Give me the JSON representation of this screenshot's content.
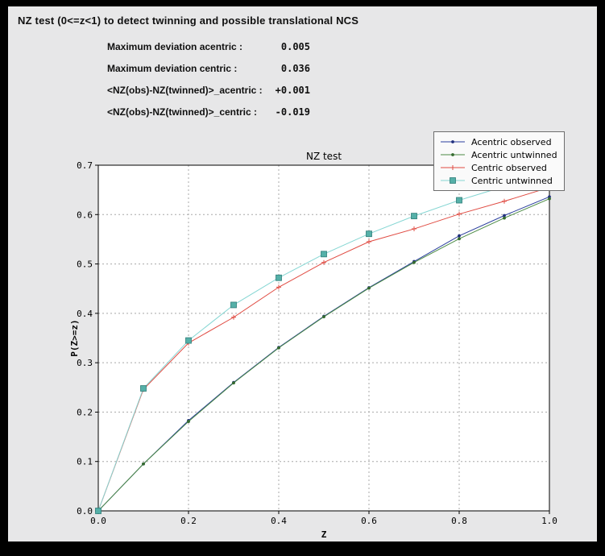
{
  "window": {
    "border_color": "#000000",
    "panel_bg": "#e7e7e8"
  },
  "header": {
    "title": "NZ test (0<=z<1) to detect twinning and possible translational NCS"
  },
  "stats": [
    {
      "label": "Maximum deviation acentric :",
      "value": "0.005"
    },
    {
      "label": "Maximum deviation centric :",
      "value": "0.036"
    },
    {
      "label": "<NZ(obs)-NZ(twinned)>_acentric :",
      "value": "+0.001"
    },
    {
      "label": "<NZ(obs)-NZ(twinned)>_centric :",
      "value": "-0.019"
    }
  ],
  "chart_data": {
    "type": "line",
    "title": "NZ test",
    "xlabel": "Z",
    "ylabel": "P(Z>=z)",
    "xlim": [
      0.0,
      1.0
    ],
    "ylim": [
      0.0,
      0.7
    ],
    "xtick_values": [
      0.0,
      0.2,
      0.4,
      0.6,
      0.8,
      1.0
    ],
    "xtick_labels": [
      "0.0",
      "0.2",
      "0.4",
      "0.6",
      "0.8",
      "1.0"
    ],
    "ytick_values": [
      0.0,
      0.1,
      0.2,
      0.3,
      0.4,
      0.5,
      0.6,
      0.7
    ],
    "ytick_labels": [
      "0.0",
      "0.1",
      "0.2",
      "0.3",
      "0.4",
      "0.5",
      "0.6",
      "0.7"
    ],
    "grid": true,
    "grid_color": "#a8a8a8",
    "plot_bg": "#ffffff",
    "frame_color": "#000000",
    "legend_position": "upper right",
    "x": [
      0.0,
      0.1,
      0.2,
      0.3,
      0.4,
      0.5,
      0.6,
      0.7,
      0.8,
      0.9,
      1.0
    ],
    "series": [
      {
        "name": "Acentric observed",
        "color": "#2b3f9e",
        "marker": "dot",
        "marker_fill": "#21307d",
        "values": [
          0.0,
          0.095,
          0.183,
          0.26,
          0.331,
          0.394,
          0.452,
          0.505,
          0.557,
          0.598,
          0.636
        ]
      },
      {
        "name": "Acentric untwinned",
        "color": "#4c8b44",
        "marker": "dot",
        "marker_fill": "#356b2f",
        "values": [
          0.0,
          0.095,
          0.181,
          0.259,
          0.33,
          0.393,
          0.451,
          0.503,
          0.551,
          0.593,
          0.632
        ]
      },
      {
        "name": "Centric observed",
        "color": "#e04b42",
        "marker": "plus",
        "marker_fill": "#e04b42",
        "values": [
          0.0,
          0.246,
          0.34,
          0.392,
          0.453,
          0.503,
          0.545,
          0.571,
          0.601,
          0.627,
          0.655
        ]
      },
      {
        "name": "Centric untwinned",
        "color": "#85d6d3",
        "marker": "square",
        "marker_fill": "#55b0a8",
        "marker_edge": "#2f7d78",
        "values": [
          0.0,
          0.248,
          0.345,
          0.417,
          0.472,
          0.52,
          0.561,
          0.597,
          0.629,
          0.657,
          0.683
        ]
      }
    ]
  }
}
